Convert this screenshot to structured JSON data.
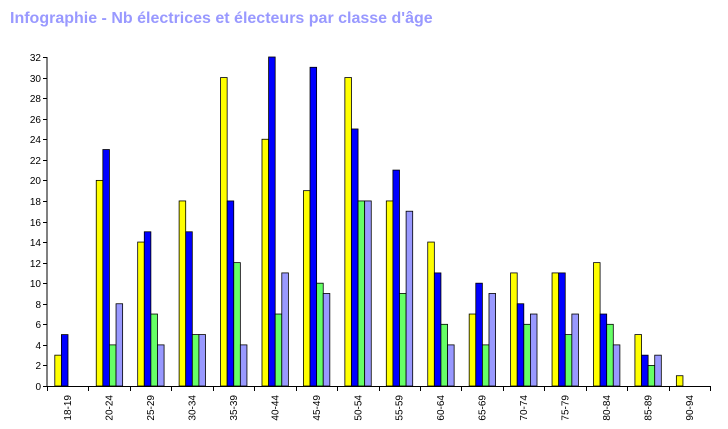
{
  "chart_data": {
    "type": "bar",
    "title": "Infographie - Nb électrices et électeurs par classe d'âge",
    "categories": [
      "18-19",
      "20-24",
      "25-29",
      "30-34",
      "35-39",
      "40-44",
      "45-49",
      "50-54",
      "55-59",
      "60-64",
      "65-69",
      "70-74",
      "75-79",
      "80-84",
      "85-89",
      "90-94"
    ],
    "series": [
      {
        "color": "#ffff00",
        "values": [
          3,
          20,
          14,
          18,
          30,
          24,
          19,
          30,
          18,
          14,
          7,
          11,
          11,
          12,
          5,
          1
        ]
      },
      {
        "color": "#0000ff",
        "values": [
          5,
          23,
          15,
          15,
          18,
          32,
          31,
          25,
          21,
          11,
          10,
          8,
          11,
          7,
          3,
          0
        ]
      },
      {
        "color": "#66ff66",
        "values": [
          0,
          4,
          7,
          5,
          12,
          7,
          10,
          18,
          9,
          6,
          4,
          6,
          5,
          6,
          2,
          0
        ]
      },
      {
        "color": "#9999ff",
        "values": [
          0,
          8,
          4,
          5,
          4,
          11,
          9,
          18,
          17,
          4,
          9,
          7,
          7,
          4,
          3,
          0
        ]
      }
    ],
    "ylim": [
      0,
      32
    ],
    "yticks": [
      0,
      2,
      4,
      6,
      8,
      10,
      12,
      14,
      16,
      18,
      20,
      22,
      24,
      26,
      28,
      30,
      32
    ],
    "grid": false,
    "legend": "none"
  }
}
